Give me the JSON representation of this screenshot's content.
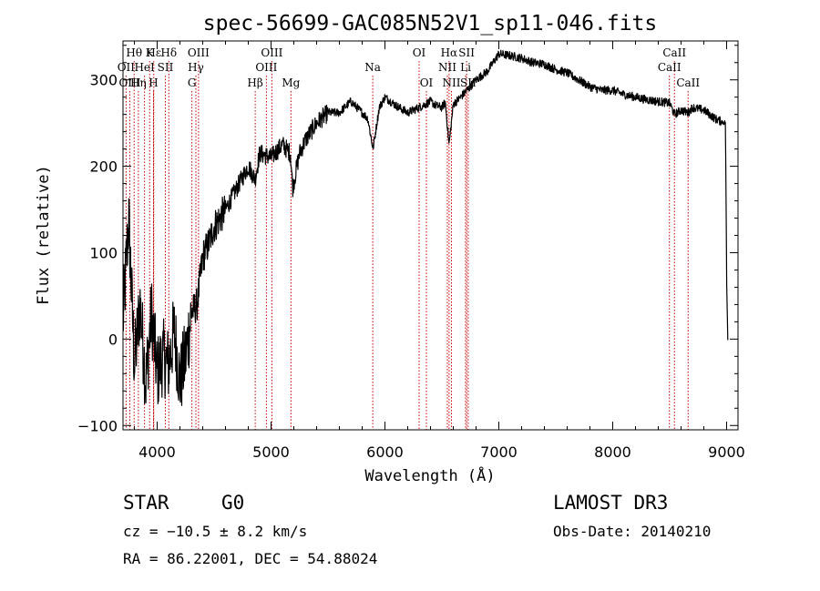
{
  "chart_data": {
    "type": "line",
    "title": "spec-56699-GAC085N52V1_sp11-046.fits",
    "xlabel": "Wavelength (Å)",
    "ylabel": "Flux (relative)",
    "xlim": [
      3700,
      9100
    ],
    "ylim": [
      -105,
      345
    ],
    "xticks": [
      4000,
      5000,
      6000,
      7000,
      8000,
      9000
    ],
    "yticks": [
      -100,
      0,
      100,
      200,
      300
    ],
    "spectrum": {
      "x": [
        3700,
        3750,
        3800,
        3850,
        3900,
        3950,
        4000,
        4050,
        4100,
        4150,
        4200,
        4250,
        4300,
        4350,
        4400,
        4450,
        4500,
        4600,
        4700,
        4800,
        4860,
        4900,
        5000,
        5100,
        5170,
        5190,
        5250,
        5300,
        5400,
        5500,
        5600,
        5700,
        5800,
        5850,
        5895,
        5950,
        6000,
        6100,
        6200,
        6300,
        6400,
        6450,
        6500,
        6530,
        6563,
        6600,
        6650,
        6700,
        6800,
        6900,
        7000,
        7100,
        7200,
        7300,
        7400,
        7500,
        7600,
        7700,
        7800,
        7900,
        8000,
        8100,
        8200,
        8300,
        8400,
        8500,
        8542,
        8600,
        8662,
        8700,
        8800,
        8900,
        8950,
        8990,
        9000,
        9010
      ],
      "y": [
        20,
        140,
        -30,
        40,
        -50,
        30,
        -40,
        -20,
        -30,
        10,
        -50,
        -20,
        30,
        40,
        95,
        110,
        130,
        150,
        175,
        200,
        185,
        215,
        210,
        225,
        215,
        175,
        215,
        230,
        250,
        262,
        262,
        275,
        262,
        255,
        220,
        268,
        280,
        270,
        262,
        268,
        275,
        270,
        268,
        274,
        225,
        272,
        278,
        285,
        300,
        310,
        330,
        328,
        325,
        320,
        318,
        312,
        308,
        300,
        292,
        288,
        288,
        283,
        280,
        277,
        275,
        273,
        260,
        265,
        262,
        268,
        265,
        255,
        252,
        250,
        70,
        0
      ]
    },
    "spectral_lines": [
      {
        "label": "Hθ",
        "wavelength": 3798,
        "row": 1
      },
      {
        "label": "OII",
        "wavelength": 3727,
        "row": 2
      },
      {
        "label": "OIII",
        "wavelength": 3760,
        "row": 3
      },
      {
        "label": "K",
        "wavelength": 3934,
        "row": 1
      },
      {
        "label": "Hε",
        "wavelength": 3970,
        "row": 1
      },
      {
        "label": "HeI",
        "wavelength": 3889,
        "row": 2
      },
      {
        "label": "Hη",
        "wavelength": 3835,
        "row": 3
      },
      {
        "label": "H",
        "wavelength": 3968,
        "row": 3
      },
      {
        "label": "Hδ",
        "wavelength": 4102,
        "row": 1
      },
      {
        "label": "SII",
        "wavelength": 4072,
        "row": 2
      },
      {
        "label": "OIII",
        "wavelength": 4363,
        "row": 1
      },
      {
        "label": "Hγ",
        "wavelength": 4340,
        "row": 2
      },
      {
        "label": "G",
        "wavelength": 4305,
        "row": 3
      },
      {
        "label": "Hβ",
        "wavelength": 4861,
        "row": 3
      },
      {
        "label": "OIII",
        "wavelength": 5007,
        "row": 1
      },
      {
        "label": "OIII",
        "wavelength": 4959,
        "row": 2
      },
      {
        "label": "Mg",
        "wavelength": 5175,
        "row": 3
      },
      {
        "label": "Na",
        "wavelength": 5893,
        "row": 2
      },
      {
        "label": "OI",
        "wavelength": 6300,
        "row": 1
      },
      {
        "label": "OI",
        "wavelength": 6364,
        "row": 3
      },
      {
        "label": "Hα",
        "wavelength": 6563,
        "row": 1
      },
      {
        "label": "SII",
        "wavelength": 6717,
        "row": 1
      },
      {
        "label": "NII",
        "wavelength": 6548,
        "row": 2
      },
      {
        "label": "Li",
        "wavelength": 6708,
        "row": 2
      },
      {
        "label": "NII",
        "wavelength": 6584,
        "row": 3
      },
      {
        "label": "SII",
        "wavelength": 6731,
        "row": 3
      },
      {
        "label": "CaII",
        "wavelength": 8542,
        "row": 1
      },
      {
        "label": "CaII",
        "wavelength": 8498,
        "row": 2
      },
      {
        "label": "CaII",
        "wavelength": 8662,
        "row": 3
      }
    ]
  },
  "info": {
    "object_class": "STAR",
    "subclass": "G0",
    "survey": "LAMOST DR3",
    "redshift_line": "cz = −10.5 ± 8.2 km/s",
    "obs_date_line": "Obs-Date: 20140210",
    "coords_line": "RA =  86.22001, DEC =  54.88024"
  }
}
